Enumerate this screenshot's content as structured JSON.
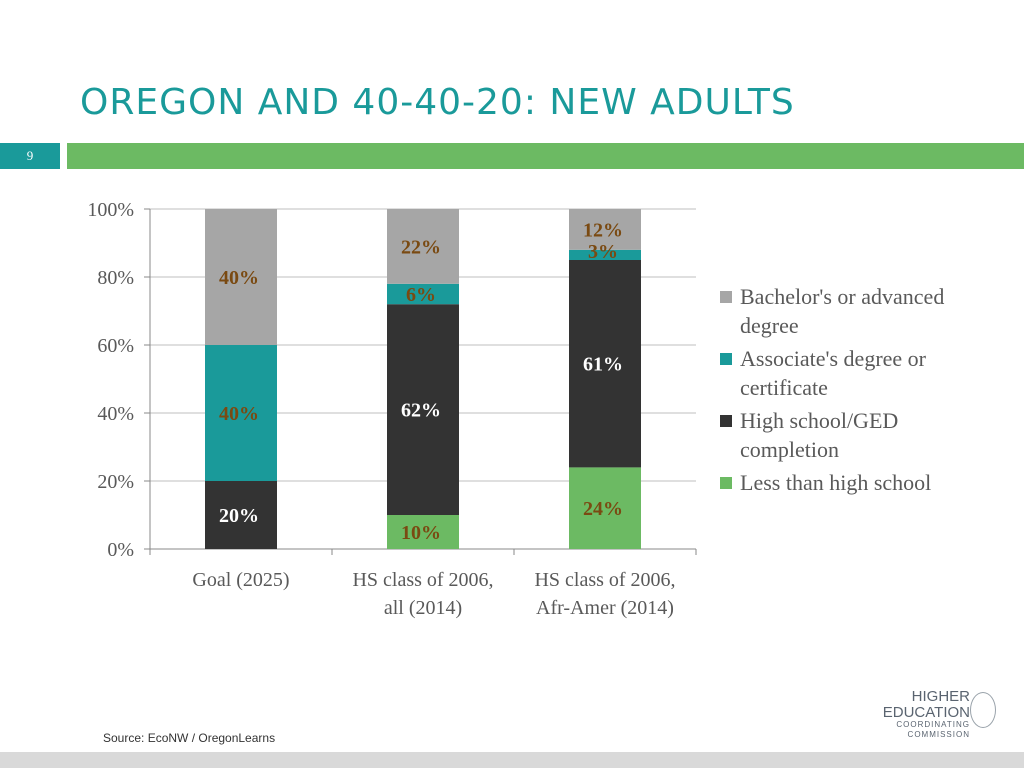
{
  "slide": {
    "title": "OREGON AND 40-40-20: NEW ADULTS",
    "page_number": "9",
    "source": "Source: EcoNW / OregonLearns",
    "logo": {
      "line1": "HIGHER",
      "line2": "EDUCATION",
      "line3": "COORDINATING",
      "line4": "COMMISSION"
    }
  },
  "chart_data": {
    "type": "bar",
    "stacked": true,
    "categories": [
      [
        "Goal (2025)"
      ],
      [
        "HS class of 2006,",
        "all (2014)"
      ],
      [
        "HS class of 2006,",
        "Afr-Amer (2014)"
      ]
    ],
    "series": [
      {
        "name": "Less than high school",
        "color": "#6cba63",
        "label_color": "#7a4a12",
        "values": [
          0,
          10,
          24
        ],
        "labels": [
          "",
          "10%",
          "24%"
        ]
      },
      {
        "name": "High school/GED completion",
        "color": "#333333",
        "label_color": "#ffffff",
        "values": [
          20,
          62,
          61
        ],
        "labels": [
          "20%",
          "62%",
          "61%"
        ]
      },
      {
        "name": "Associate's degree or certificate",
        "color": "#1a9a9a",
        "label_color": "#7a4a12",
        "values": [
          40,
          6,
          3
        ],
        "labels": [
          "40%",
          "6%",
          "3%"
        ]
      },
      {
        "name": "Bachelor's or advanced degree",
        "color": "#a6a6a6",
        "label_color": "#7a4a12",
        "values": [
          40,
          22,
          12
        ],
        "labels": [
          "40%",
          "22%",
          "12%"
        ]
      }
    ],
    "legend_order": [
      3,
      2,
      1,
      0
    ],
    "legend_text": [
      "Bachelor's or advanced degree",
      "Associate's degree or certificate",
      "High school/GED completion",
      "Less than high school"
    ],
    "y_ticks": [
      "0%",
      "20%",
      "40%",
      "60%",
      "80%",
      "100%"
    ],
    "ylim": [
      0,
      100
    ],
    "grid": true,
    "legend_position": "right"
  }
}
